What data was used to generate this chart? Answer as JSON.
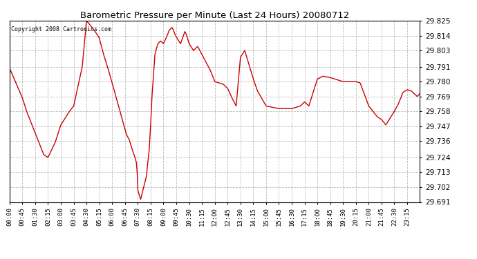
{
  "title": "Barometric Pressure per Minute (Last 24 Hours) 20080712",
  "copyright": "Copyright 2008 Cartronics.com",
  "background_color": "#ffffff",
  "plot_background": "#ffffff",
  "line_color": "#cc0000",
  "line_width": 1.0,
  "ylim": [
    29.691,
    29.825
  ],
  "yticks": [
    29.691,
    29.702,
    29.713,
    29.724,
    29.736,
    29.747,
    29.758,
    29.769,
    29.78,
    29.791,
    29.803,
    29.814,
    29.825
  ],
  "xtick_labels": [
    "00:00",
    "00:45",
    "01:30",
    "02:15",
    "03:00",
    "03:45",
    "04:30",
    "05:15",
    "06:00",
    "06:45",
    "07:30",
    "08:15",
    "09:00",
    "09:45",
    "10:30",
    "11:15",
    "12:00",
    "12:45",
    "13:30",
    "14:15",
    "15:00",
    "15:45",
    "16:30",
    "17:15",
    "18:00",
    "18:45",
    "19:30",
    "20:15",
    "21:00",
    "21:45",
    "22:30",
    "23:15"
  ],
  "grid_color": "#bbbbbb",
  "grid_style": "--",
  "keypoints_t": [
    0,
    45,
    60,
    90,
    120,
    135,
    160,
    180,
    210,
    225,
    255,
    270,
    290,
    310,
    315,
    330,
    345,
    360,
    390,
    410,
    420,
    430,
    440,
    445,
    448,
    449,
    450,
    455,
    460,
    480,
    490,
    495,
    500,
    510,
    520,
    530,
    540,
    555,
    560,
    570,
    575,
    580,
    585,
    600,
    610,
    615,
    620,
    630,
    645,
    660,
    675,
    690,
    705,
    720,
    750,
    765,
    780,
    795,
    810,
    825,
    855,
    870,
    900,
    945,
    990,
    1020,
    1035,
    1050,
    1080,
    1100,
    1125,
    1140,
    1155,
    1170,
    1185,
    1200,
    1215,
    1230,
    1260,
    1290,
    1305,
    1320,
    1350,
    1365,
    1380,
    1395,
    1410,
    1420,
    1430,
    1439
  ],
  "keypoints_v": [
    29.79,
    29.768,
    29.758,
    29.742,
    29.726,
    29.724,
    29.735,
    29.748,
    29.758,
    29.762,
    29.791,
    29.825,
    29.82,
    29.814,
    29.812,
    29.8,
    29.79,
    29.779,
    29.756,
    29.741,
    29.737,
    29.73,
    29.724,
    29.72,
    29.712,
    29.705,
    29.7,
    29.696,
    29.693,
    29.71,
    29.73,
    29.748,
    29.77,
    29.8,
    29.808,
    29.81,
    29.808,
    29.815,
    29.818,
    29.82,
    29.818,
    29.815,
    29.813,
    29.808,
    29.814,
    29.817,
    29.815,
    29.808,
    29.803,
    29.806,
    29.8,
    29.794,
    29.788,
    29.78,
    29.778,
    29.775,
    29.768,
    29.762,
    29.798,
    29.803,
    29.782,
    29.773,
    29.762,
    29.76,
    29.76,
    29.762,
    29.765,
    29.762,
    29.782,
    29.784,
    29.783,
    29.782,
    29.781,
    29.78,
    29.78,
    29.78,
    29.78,
    29.779,
    29.762,
    29.754,
    29.752,
    29.748,
    29.758,
    29.764,
    29.772,
    29.774,
    29.773,
    29.771,
    29.769,
    29.771
  ]
}
